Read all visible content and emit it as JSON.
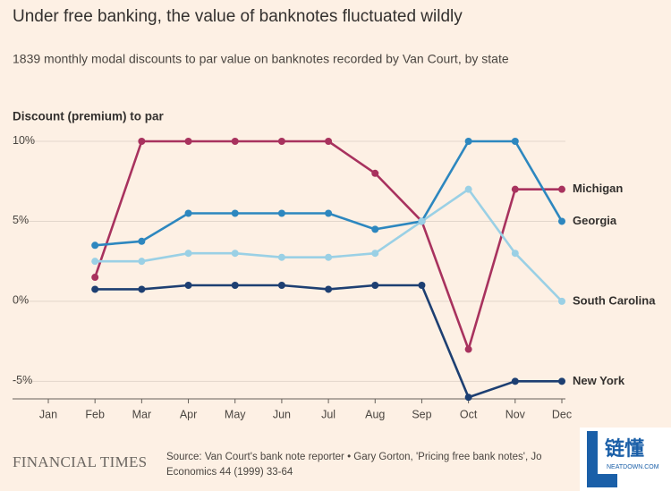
{
  "chart_data": {
    "type": "line",
    "title": "Under free banking, the value of banknotes fluctuated wildly",
    "subtitle": "1839 monthly modal discounts to par value on banknotes recorded by Van Court, by state",
    "y_label": "Discount (premium) to par",
    "categories": [
      "Jan",
      "Feb",
      "Mar",
      "Apr",
      "May",
      "Jun",
      "Jul",
      "Aug",
      "Sep",
      "Oct",
      "Nov",
      "Dec"
    ],
    "series": [
      {
        "name": "Michigan",
        "color": "#a8325e",
        "values": [
          null,
          1.5,
          10,
          10,
          10,
          10,
          10,
          8,
          5,
          -3,
          7,
          7
        ]
      },
      {
        "name": "Georgia",
        "color": "#2d87bf",
        "values": [
          null,
          3.5,
          3.75,
          5.5,
          5.5,
          5.5,
          5.5,
          4.5,
          5,
          10,
          10,
          5
        ]
      },
      {
        "name": "South Carolina",
        "color": "#9ad0e5",
        "values": [
          null,
          2.5,
          2.5,
          3,
          3,
          2.75,
          2.75,
          3,
          5,
          7,
          3,
          0
        ]
      },
      {
        "name": "New York",
        "color": "#1d3f72",
        "values": [
          null,
          0.75,
          0.75,
          1,
          1,
          1,
          0.75,
          1,
          1,
          -6,
          -5,
          -5
        ]
      }
    ],
    "ylim": [
      -6.1,
      10
    ],
    "yticks": [
      {
        "value": 10,
        "label": "10%"
      },
      {
        "value": 5,
        "label": "5%"
      },
      {
        "value": 0,
        "label": "0%"
      },
      {
        "value": -5,
        "label": "-5%"
      }
    ],
    "grid": true,
    "source": [
      "Source: Van Court's bank note reporter • Gary Gorton, 'Pricing free bank notes', Jo",
      "Economics 44 (1999) 33-64"
    ],
    "logo": "FINANCIAL TIMES",
    "watermark": {
      "text": "链懂",
      "subtext": "NEATDOWN.COM"
    }
  }
}
